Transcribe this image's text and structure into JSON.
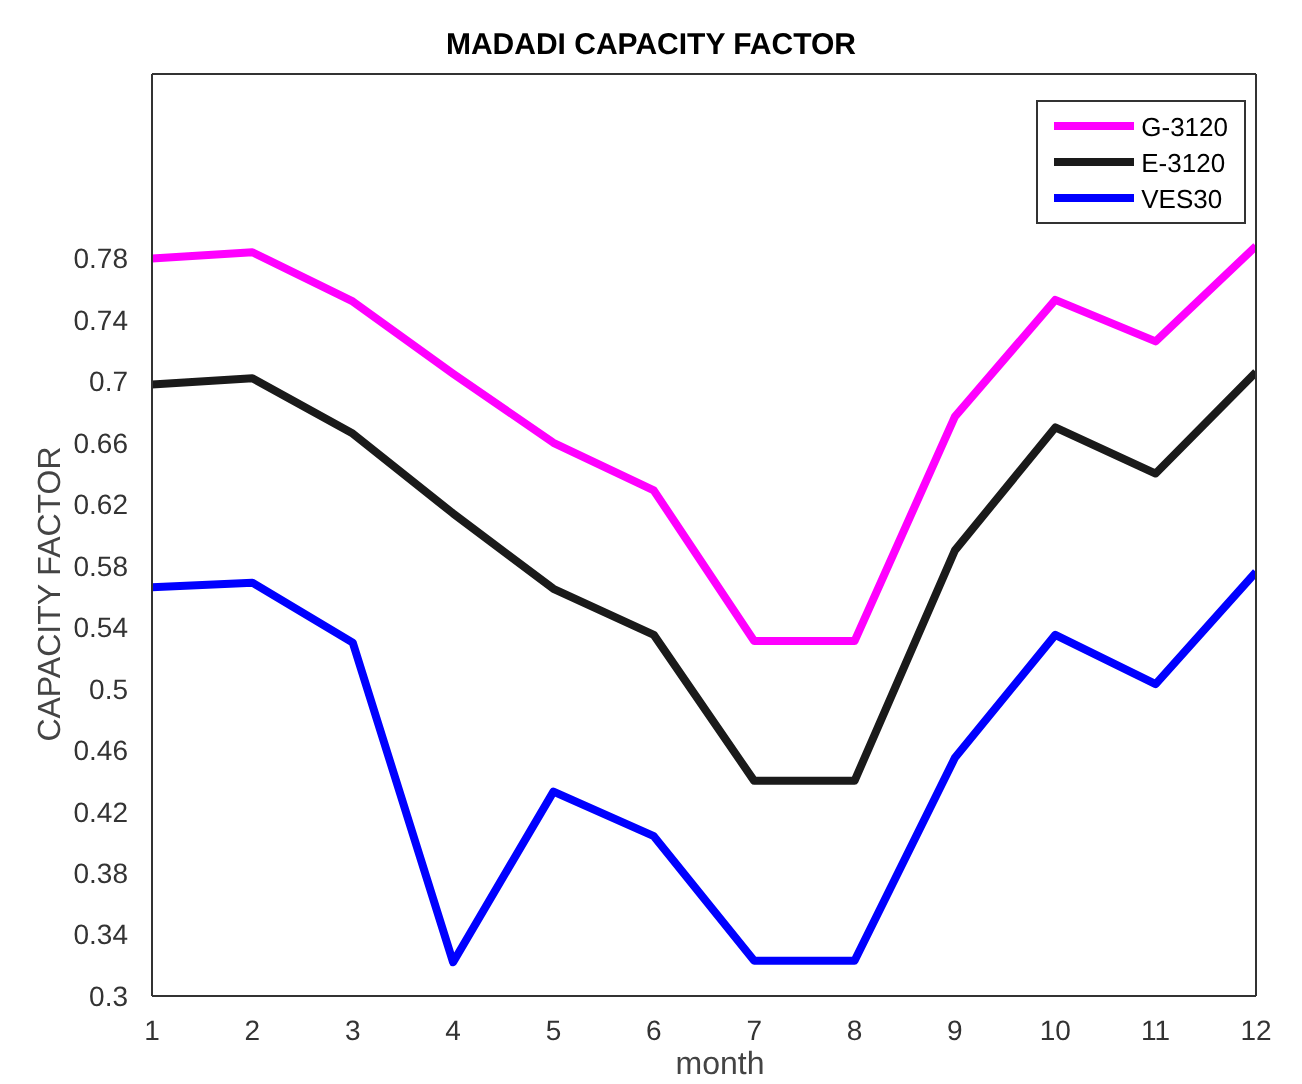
{
  "chart_data": {
    "type": "line",
    "title": "MADADI CAPACITY FACTOR",
    "xlabel": "month",
    "ylabel": "CAPACITY FACTOR",
    "x": [
      1,
      2,
      3,
      4,
      5,
      6,
      7,
      8,
      9,
      10,
      11,
      12
    ],
    "series": [
      {
        "name": "G-3120",
        "color": "#ff00ff",
        "values": [
          0.78,
          0.784,
          0.752,
          0.705,
          0.66,
          0.629,
          0.531,
          0.531,
          0.677,
          0.753,
          0.726,
          0.788
        ]
      },
      {
        "name": "E-3120",
        "color": "#1a1a1a",
        "values": [
          0.698,
          0.702,
          0.666,
          0.614,
          0.565,
          0.535,
          0.44,
          0.44,
          0.59,
          0.67,
          0.64,
          0.706
        ]
      },
      {
        "name": "VES30",
        "color": "#0000ff",
        "values": [
          0.566,
          0.569,
          0.53,
          0.322,
          0.433,
          0.404,
          0.323,
          0.323,
          0.455,
          0.535,
          0.503,
          0.576
        ]
      }
    ],
    "xlim": [
      1,
      12
    ],
    "xticks": [
      1,
      2,
      3,
      4,
      5,
      6,
      7,
      8,
      9,
      10,
      11,
      12
    ],
    "ylim": [
      0.3,
      0.9
    ],
    "yticks": [
      0.3,
      0.34,
      0.38,
      0.42,
      0.46,
      0.5,
      0.54,
      0.58,
      0.62,
      0.66,
      0.7,
      0.74,
      0.78
    ],
    "grid": false,
    "legend": "top right",
    "marker": "none",
    "line_style": "solid"
  }
}
